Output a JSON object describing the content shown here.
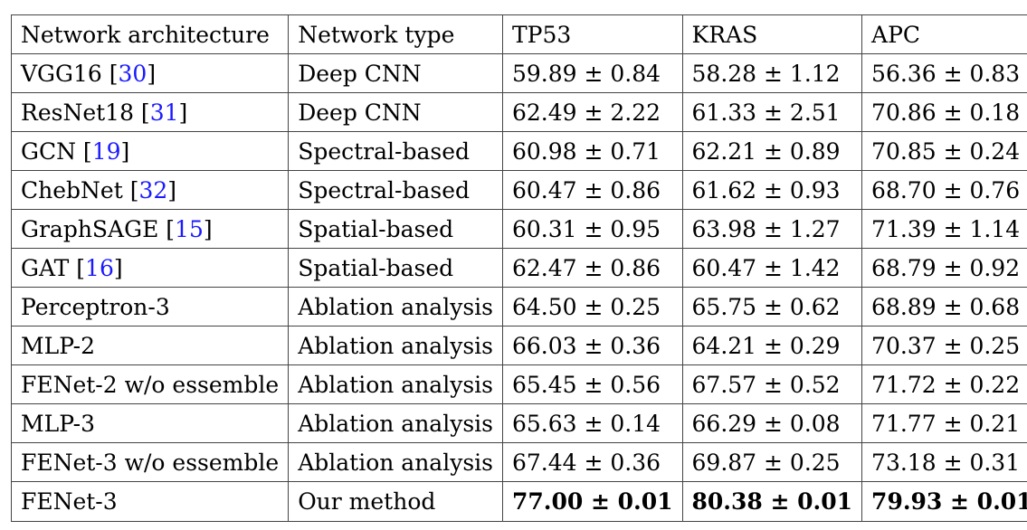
{
  "table": {
    "headers": [
      "Network architecture",
      "Network type",
      "TP53",
      "KRAS",
      "APC"
    ],
    "rows": [
      {
        "name": "VGG16",
        "ref": "30",
        "type": "Deep CNN",
        "tp53": "59.89 ± 0.84",
        "kras": "58.28 ± 1.12",
        "apc": "56.36 ± 0.83"
      },
      {
        "name": "ResNet18",
        "ref": "31",
        "type": "Deep CNN",
        "tp53": "62.49 ± 2.22",
        "kras": "61.33 ± 2.51",
        "apc": "70.86 ± 0.18"
      },
      {
        "name": "GCN",
        "ref": "19",
        "type": "Spectral-based",
        "tp53": "60.98 ± 0.71",
        "kras": "62.21 ± 0.89",
        "apc": "70.85 ± 0.24"
      },
      {
        "name": "ChebNet",
        "ref": "32",
        "type": "Spectral-based",
        "tp53": "60.47 ± 0.86",
        "kras": "61.62 ± 0.93",
        "apc": "68.70 ± 0.76"
      },
      {
        "name": "GraphSAGE",
        "ref": "15",
        "type": "Spatial-based",
        "tp53": "60.31 ± 0.95",
        "kras": "63.98 ± 1.27",
        "apc": "71.39 ± 1.14"
      },
      {
        "name": "GAT",
        "ref": "16",
        "type": "Spatial-based",
        "tp53": "62.47 ± 0.86",
        "kras": "60.47 ± 1.42",
        "apc": "68.79 ± 0.92"
      },
      {
        "name": "Perceptron-3",
        "ref": "",
        "type": "Ablation analysis",
        "tp53": "64.50 ± 0.25",
        "kras": "65.75 ± 0.62",
        "apc": "68.89 ± 0.68"
      },
      {
        "name": "MLP-2",
        "ref": "",
        "type": "Ablation analysis",
        "tp53": "66.03 ± 0.36",
        "kras": "64.21 ± 0.29",
        "apc": "70.37 ± 0.25"
      },
      {
        "name": "FENet-2 w/o essemble",
        "ref": "",
        "type": "Ablation analysis",
        "tp53": "65.45 ± 0.56",
        "kras": "67.57 ± 0.52",
        "apc": "71.72 ± 0.22"
      },
      {
        "name": "MLP-3",
        "ref": "",
        "type": "Ablation analysis",
        "tp53": "65.63 ± 0.14",
        "kras": "66.29 ± 0.08",
        "apc": "71.77 ± 0.21"
      },
      {
        "name": "FENet-3 w/o essemble",
        "ref": "",
        "type": "Ablation analysis",
        "tp53": "67.44 ± 0.36",
        "kras": "69.87 ± 0.25",
        "apc": "73.18 ± 0.31"
      },
      {
        "name": "FENet-3",
        "ref": "",
        "type": "Our method",
        "tp53": "77.00 ± 0.01",
        "kras": "80.38 ± 0.01",
        "apc": "79.93 ± 0.01",
        "bold": true
      }
    ]
  },
  "colors": {
    "reference_link": "#1a1aff",
    "border": "#444444",
    "text": "#000000"
  }
}
